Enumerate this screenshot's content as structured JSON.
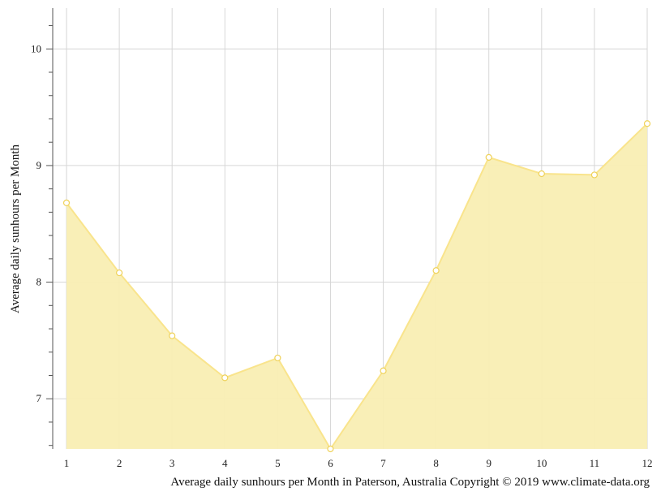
{
  "chart_data": {
    "type": "area",
    "x": [
      1,
      2,
      3,
      4,
      5,
      6,
      7,
      8,
      9,
      10,
      11,
      12
    ],
    "series": [
      {
        "values": [
          8.68,
          8.08,
          7.54,
          7.18,
          7.35,
          6.57,
          7.24,
          8.1,
          9.07,
          8.93,
          8.92,
          9.36
        ]
      }
    ],
    "xlabel": "Average daily sunhours per Month in Paterson, Australia Copyright © 2019 www.climate-data.org",
    "ylabel": "Average daily sunhours per Month",
    "xticks": [
      "1",
      "2",
      "3",
      "4",
      "5",
      "6",
      "7",
      "8",
      "9",
      "10",
      "11",
      "12"
    ],
    "yticks": [
      "7",
      "8",
      "9",
      "10"
    ],
    "ylim": [
      6.57,
      10.35
    ],
    "xlim": [
      1,
      12
    ],
    "grid": true,
    "colors": {
      "fill": "#f9eeb3",
      "line": "#f9e48c",
      "marker_stroke": "#efd25a",
      "grid": "#d6d6d6",
      "axis": "#555555"
    }
  }
}
